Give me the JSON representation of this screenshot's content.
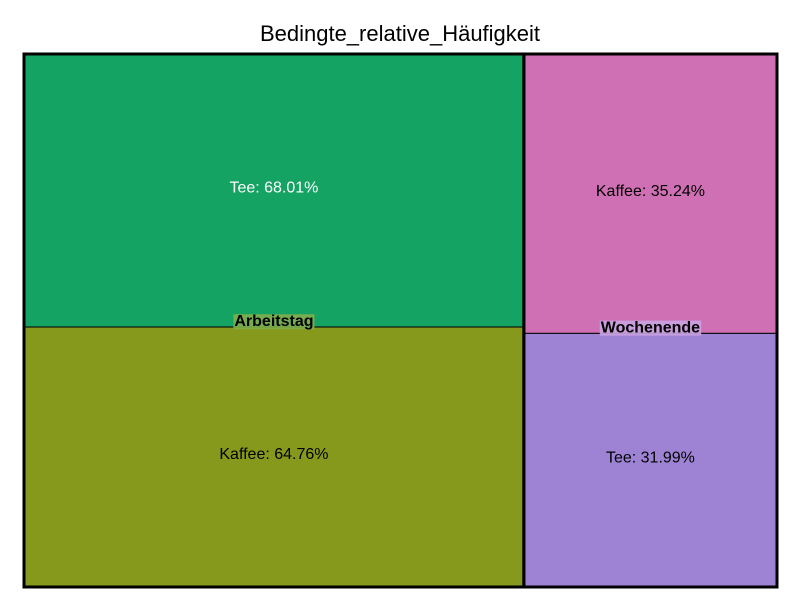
{
  "chart_data": {
    "type": "treemap",
    "title": "Bedingte_relative_Häufigkeit",
    "groups": [
      {
        "name": "Arbeitstag",
        "color": "#1F1F1F",
        "children": [
          {
            "label": "Tee: 68.01%",
            "category": "Tee",
            "value": 68.01,
            "color": "#14A363",
            "text_color": "#ffffff"
          },
          {
            "label": "Kaffee: 64.76%",
            "category": "Kaffee",
            "value": 64.76,
            "color": "#86991C",
            "text_color": "#000000"
          }
        ],
        "label_bg": "#7FAE4C"
      },
      {
        "name": "Wochenende",
        "children": [
          {
            "label": "Kaffee: 35.24%",
            "category": "Kaffee",
            "value": 35.24,
            "color": "#D070B4",
            "text_color": "#000000"
          },
          {
            "label": "Tee: 31.99%",
            "category": "Tee",
            "value": 31.99,
            "color": "#9E82D4",
            "text_color": "#000000"
          }
        ],
        "label_bg": "#C9A2E0"
      }
    ]
  }
}
